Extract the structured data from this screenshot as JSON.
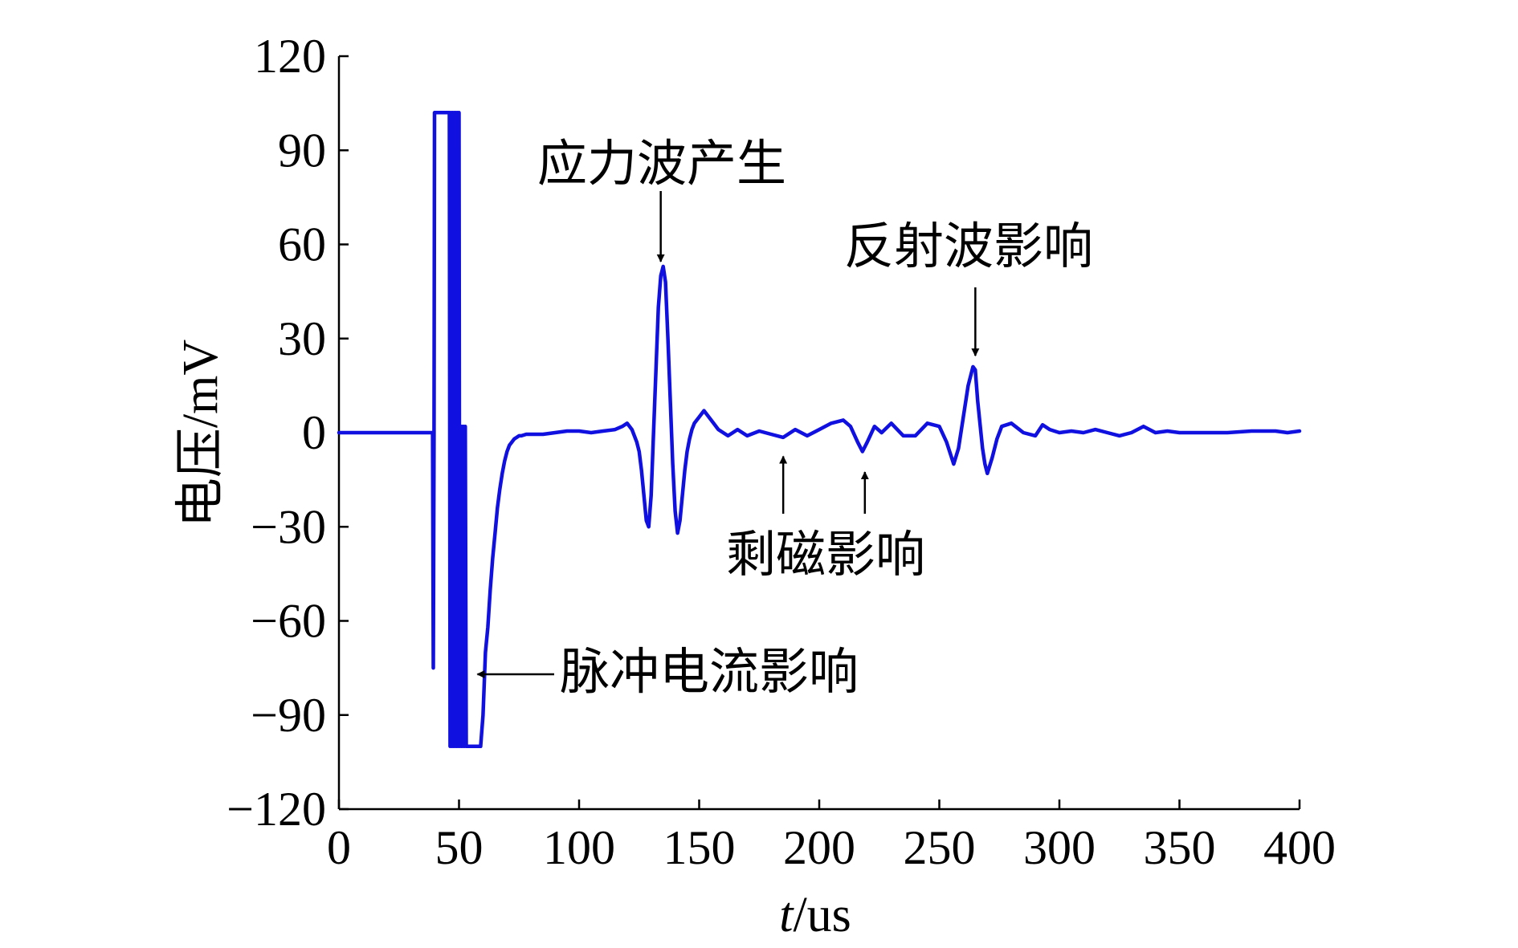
{
  "chart_data": {
    "type": "line",
    "title": "",
    "xlabel_italic": "t",
    "xlabel_unit": "/us",
    "ylabel": "电压/mV",
    "xlim": [
      0,
      400
    ],
    "ylim": [
      -120,
      120
    ],
    "xticks": [
      0,
      50,
      100,
      150,
      200,
      250,
      300,
      350,
      400
    ],
    "yticks": [
      120,
      90,
      60,
      30,
      0,
      -30,
      -60,
      -90,
      -120
    ],
    "ytick_labels": [
      "120",
      "90",
      "60",
      "30",
      "0",
      "−30",
      "−60",
      "−90",
      "−120"
    ],
    "grid": false,
    "line_color": "#1010e0",
    "series": [
      {
        "x": [
          0,
          38,
          39,
          39.3,
          39.6,
          39.8,
          40,
          40.5,
          46,
          46.3,
          46.6,
          47,
          47.3,
          47.6,
          48,
          48.3,
          48.6,
          49,
          49.3,
          49.6,
          50,
          50.3,
          50.6,
          51,
          51.3,
          51.6,
          52,
          52.3,
          52.6,
          53,
          53.3,
          53.6,
          54,
          55,
          56,
          57,
          58,
          59,
          60,
          61,
          62,
          63,
          64,
          65,
          66,
          67,
          68,
          69,
          70,
          71,
          72,
          73,
          74,
          75,
          76,
          78,
          80,
          85,
          90,
          95,
          100,
          105,
          110,
          115,
          118,
          120,
          122,
          124,
          125,
          126,
          127,
          128,
          129,
          130,
          131,
          132,
          133,
          134,
          135,
          136,
          137,
          138,
          139,
          140,
          141,
          142,
          143,
          144,
          145,
          146,
          147,
          148,
          150,
          152,
          155,
          158,
          160,
          162,
          164,
          166,
          168,
          170,
          175,
          180,
          185,
          190,
          195,
          200,
          205,
          210,
          213,
          216,
          218,
          220,
          223,
          226,
          230,
          235,
          240,
          245,
          250,
          253,
          256,
          258,
          260,
          262,
          264,
          265,
          266,
          268,
          269,
          270,
          272,
          274,
          276,
          280,
          285,
          290,
          293,
          296,
          300,
          305,
          310,
          315,
          320,
          325,
          330,
          335,
          340,
          345,
          350,
          360,
          370,
          380,
          390,
          395,
          400
        ],
        "y": [
          0,
          0,
          0,
          -75,
          0,
          102,
          102,
          102,
          102,
          -100,
          102,
          -100,
          102,
          -100,
          102,
          -100,
          102,
          -100,
          102,
          -100,
          102,
          -100,
          2,
          -100,
          2,
          -100,
          2,
          -100,
          2,
          -100,
          -100,
          -100,
          -100,
          -100,
          -100,
          -100,
          -100,
          -100,
          -90,
          -70,
          -62,
          -50,
          -40,
          -32,
          -24,
          -18,
          -13,
          -9,
          -6,
          -4,
          -3,
          -2,
          -1.5,
          -1,
          -1,
          -0.5,
          -0.5,
          -0.5,
          0,
          0.5,
          0.5,
          0,
          0.5,
          1,
          2,
          3,
          1,
          -3,
          -6,
          -12,
          -20,
          -28,
          -30,
          -20,
          0,
          20,
          40,
          50,
          53,
          48,
          30,
          10,
          -10,
          -25,
          -32,
          -28,
          -20,
          -12,
          -6,
          -2,
          1,
          3,
          5,
          7,
          4,
          1,
          0,
          -1,
          0,
          1,
          0,
          -1,
          0.5,
          -0.5,
          -1.5,
          1,
          -1,
          1,
          3,
          4,
          2,
          -3,
          -6,
          -3,
          2,
          0,
          3,
          -1,
          -1,
          3,
          2,
          -3,
          -10,
          -5,
          5,
          15,
          21,
          20,
          10,
          -5,
          -10,
          -13,
          -8,
          -2,
          2,
          3,
          0,
          -1,
          2.5,
          1,
          0,
          0.5,
          0,
          1,
          0,
          -1,
          0,
          2,
          0,
          0.5,
          0,
          0,
          0,
          0.5,
          0.5,
          0,
          0.5
        ]
      }
    ],
    "annotations": [
      {
        "text": "应力波产生",
        "target": [
          134,
          53
        ]
      },
      {
        "text": "反射波影响",
        "target": [
          265,
          23
        ]
      },
      {
        "text": "剩磁影响",
        "targets": [
          [
            185,
            -5
          ],
          [
            219,
            -10
          ]
        ]
      },
      {
        "text": "脉冲电流影响",
        "target": [
          55,
          -77
        ]
      }
    ]
  }
}
